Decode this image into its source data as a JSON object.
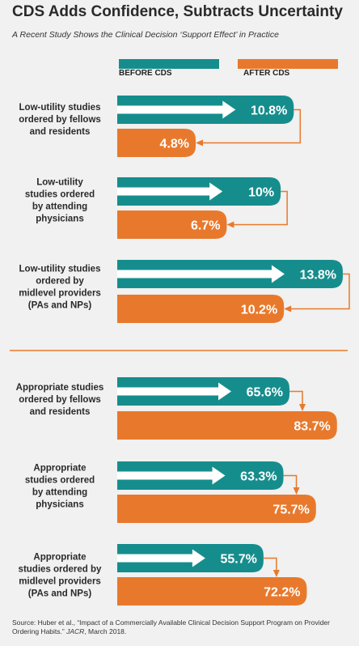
{
  "title": "CDS Adds Confidence, Subtracts Uncertainty",
  "subtitle": "A Recent Study Shows the Clinical Decision ‘Support Effect’ in Practice",
  "legend": [
    {
      "label": "BEFORE CDS",
      "color": "#168d8d"
    },
    {
      "label": "AFTER CDS",
      "color": "#e8792c"
    }
  ],
  "colors": {
    "before": "#168d8d",
    "after": "#e8792c",
    "divider": "#e8792c"
  },
  "source_text": "Source: Huber et al., “Impact of a Commercially Available Clinical Decision Support Program on Provider Ordering Habits.” JACR, March 2018.",
  "chart_data": [
    {
      "type": "bar",
      "title": "",
      "categories": [
        "Low-utility studies ordered by fellows and residents",
        "Low-utility studies ordered by attending physicians",
        "Low-utility studies ordered by midlevel providers (PAs and NPs)"
      ],
      "series": [
        {
          "name": "BEFORE CDS",
          "values": [
            10.8,
            10,
            13.8
          ],
          "labels": [
            "10.8%",
            "10%",
            "13.8%"
          ]
        },
        {
          "name": "AFTER CDS",
          "values": [
            4.8,
            6.7,
            10.2
          ],
          "labels": [
            "4.8%",
            "6.7%",
            "10.2%"
          ]
        }
      ],
      "orientation": "horizontal"
    },
    {
      "type": "bar",
      "title": "",
      "categories": [
        "Appropriate studies ordered by fellows and residents",
        "Appropriate studies ordered by attending physicians",
        "Appropriate studies ordered by midlevel providers (PAs and NPs)"
      ],
      "series": [
        {
          "name": "BEFORE CDS",
          "values": [
            65.6,
            63.3,
            55.7
          ],
          "labels": [
            "65.6%",
            "63.3%",
            "55.7%"
          ]
        },
        {
          "name": "AFTER CDS",
          "values": [
            83.7,
            75.7,
            72.2
          ],
          "labels": [
            "83.7%",
            "75.7%",
            "72.2%"
          ]
        }
      ],
      "orientation": "horizontal"
    }
  ],
  "category_lines": [
    [
      "Low-utility studies",
      "ordered by fellows",
      "and residents"
    ],
    [
      "Low-utility",
      "studies ordered",
      "by attending",
      "physicians"
    ],
    [
      "Low-utility studies",
      "ordered by",
      "midlevel providers",
      "(PAs and NPs)"
    ],
    [
      "Appropriate studies",
      "ordered by fellows",
      "and residents"
    ],
    [
      "Appropriate",
      "studies ordered",
      "by attending",
      "physicians"
    ],
    [
      "Appropriate",
      "studies ordered by",
      "midlevel providers",
      "(PAs and NPs)"
    ]
  ]
}
